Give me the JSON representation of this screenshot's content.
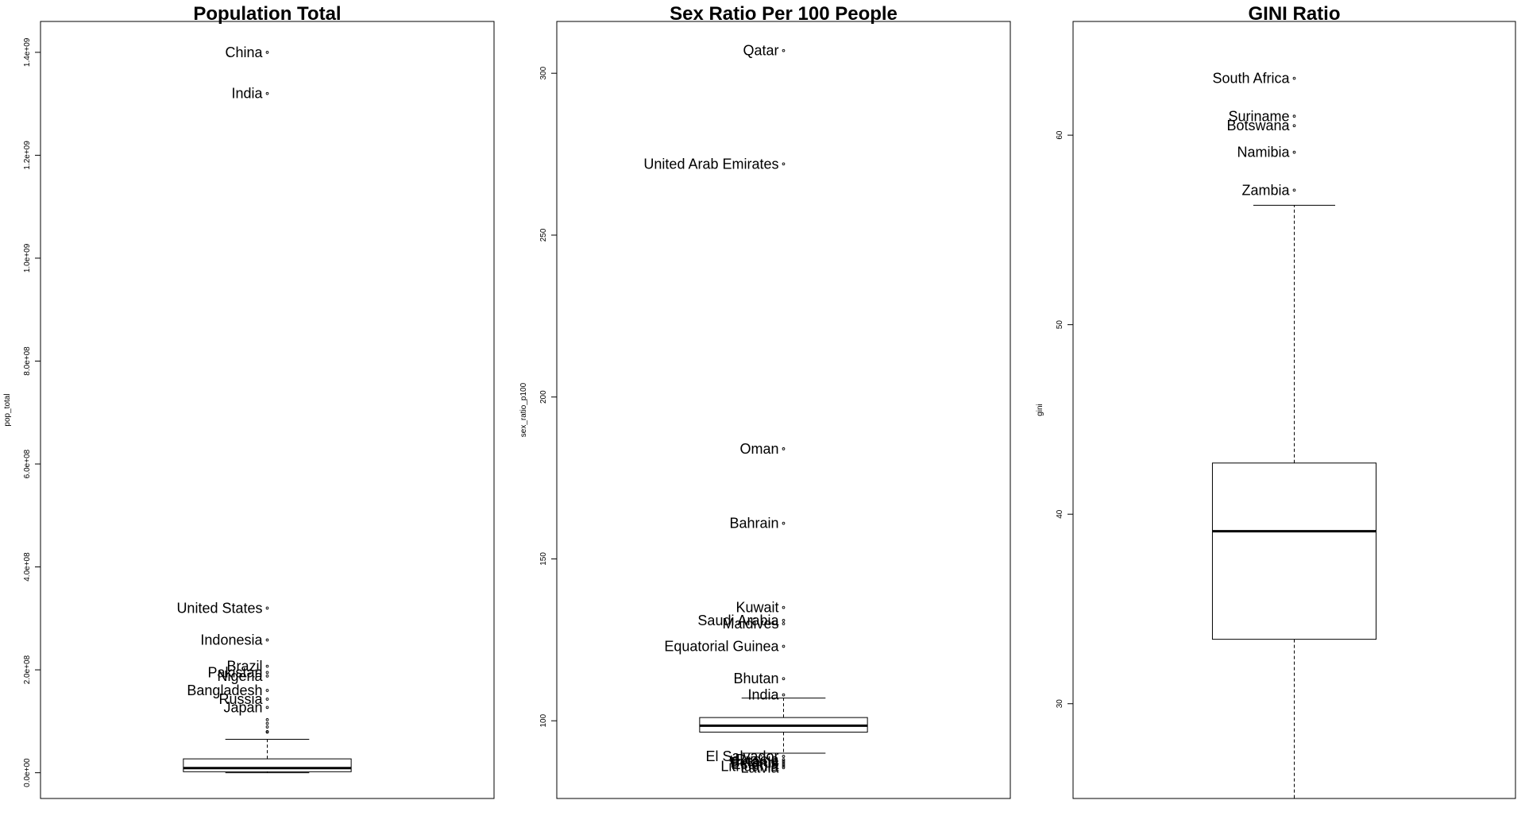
{
  "chart_data": [
    {
      "type": "box",
      "title": "Population Total",
      "ylabel": "pop_total",
      "ylim": [
        -50000000,
        1460000000
      ],
      "yticks": [
        0,
        200000000,
        400000000,
        600000000,
        800000000,
        1000000000,
        1200000000,
        1400000000
      ],
      "ytick_labels": [
        "0.0e+00",
        "2.0e+08",
        "4.0e+08",
        "6.0e+08",
        "8.0e+08",
        "1.0e+09",
        "1.2e+09",
        "1.4e+09"
      ],
      "box": {
        "min": 1000,
        "q1": 2000000,
        "median": 9000000,
        "q3": 27000000,
        "max": 65000000
      },
      "outliers": [
        {
          "label": "China",
          "value": 1400000000
        },
        {
          "label": "India",
          "value": 1320000000
        },
        {
          "label": "United States",
          "value": 320000000
        },
        {
          "label": "Indonesia",
          "value": 258000000
        },
        {
          "label": "Brazil",
          "value": 207000000
        },
        {
          "label": "Pakistan",
          "value": 195000000
        },
        {
          "label": "Nigeria",
          "value": 188000000
        },
        {
          "label": "Bangladesh",
          "value": 160000000
        },
        {
          "label": "Russia",
          "value": 143000000
        },
        {
          "label": "Japan",
          "value": 127000000
        },
        {
          "label": "",
          "value": 103000000
        },
        {
          "label": "",
          "value": 96000000
        },
        {
          "label": "",
          "value": 89000000
        },
        {
          "label": "",
          "value": 80000000
        },
        {
          "label": "",
          "value": 79000000
        }
      ]
    },
    {
      "type": "box",
      "title": "Sex Ratio Per 100 People",
      "ylabel": "sex_ratio_p100",
      "ylim": [
        76,
        316
      ],
      "yticks": [
        100,
        150,
        200,
        250,
        300
      ],
      "ytick_labels": [
        "100",
        "150",
        "200",
        "250",
        "300"
      ],
      "box": {
        "min": 90,
        "q1": 96.5,
        "median": 98.5,
        "q3": 101,
        "max": 107
      },
      "outliers": [
        {
          "label": "Qatar",
          "value": 307
        },
        {
          "label": "United Arab Emirates",
          "value": 272
        },
        {
          "label": "Oman",
          "value": 184
        },
        {
          "label": "Bahrain",
          "value": 161
        },
        {
          "label": "Kuwait",
          "value": 135
        },
        {
          "label": "Saudi Arabia",
          "value": 131
        },
        {
          "label": "Maldives",
          "value": 130
        },
        {
          "label": "Equatorial Guinea",
          "value": 123
        },
        {
          "label": "Bhutan",
          "value": 113
        },
        {
          "label": "India",
          "value": 108
        },
        {
          "label": "El Salvador",
          "value": 89
        },
        {
          "label": "Russia",
          "value": 88
        },
        {
          "label": "Ukraine",
          "value": 87.5
        },
        {
          "label": "Belarus",
          "value": 87
        },
        {
          "label": "Estonia",
          "value": 86.5
        },
        {
          "label": "Lithuania",
          "value": 86
        },
        {
          "label": "Latvia",
          "value": 85.5
        }
      ]
    },
    {
      "type": "box",
      "title": "GINI Ratio",
      "ylabel": "gini",
      "ylim": [
        25,
        66
      ],
      "yticks": [
        30,
        40,
        50,
        60
      ],
      "ytick_labels": [
        "30",
        "40",
        "50",
        "60"
      ],
      "box": {
        "min": 25,
        "q1": 33.4,
        "median": 39.1,
        "q3": 42.7,
        "max": 56.3
      },
      "outliers": [
        {
          "label": "South Africa",
          "value": 63
        },
        {
          "label": "Suriname",
          "value": 61
        },
        {
          "label": "Botswana",
          "value": 60.5
        },
        {
          "label": "Namibia",
          "value": 59.1
        },
        {
          "label": "Zambia",
          "value": 57.1
        }
      ]
    }
  ]
}
